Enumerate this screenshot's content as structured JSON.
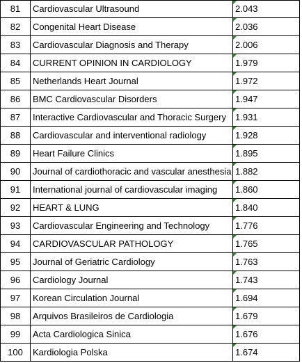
{
  "table": {
    "rows": [
      {
        "rank": "81",
        "journal": "Cardiovascular Ultrasound",
        "value": "2.043"
      },
      {
        "rank": "82",
        "journal": "Congenital Heart Disease",
        "value": "2.036"
      },
      {
        "rank": "83",
        "journal": "Cardiovascular Diagnosis and Therapy",
        "value": "2.006"
      },
      {
        "rank": "84",
        "journal": "CURRENT OPINION IN CARDIOLOGY",
        "value": "1.979"
      },
      {
        "rank": "85",
        "journal": "Netherlands Heart Journal",
        "value": "1.972"
      },
      {
        "rank": "86",
        "journal": "BMC Cardiovascular Disorders",
        "value": "1.947"
      },
      {
        "rank": "87",
        "journal": "Interactive Cardiovascular and Thoracic Surgery",
        "value": "1.931"
      },
      {
        "rank": "88",
        "journal": "Cardiovascular and interventional radiology",
        "value": "1.928"
      },
      {
        "rank": "89",
        "journal": "Heart Failure Clinics",
        "value": "1.895"
      },
      {
        "rank": "90",
        "journal": "Journal of cardiothoracic and vascular anesthesia",
        "value": "1.882"
      },
      {
        "rank": "91",
        "journal": "International journal of cardiovascular imaging",
        "value": "1.860"
      },
      {
        "rank": "92",
        "journal": "HEART & LUNG",
        "value": "1.840"
      },
      {
        "rank": "93",
        "journal": "Cardiovascular Engineering and Technology",
        "value": "1.776"
      },
      {
        "rank": "94",
        "journal": "CARDIOVASCULAR PATHOLOGY",
        "value": "1.765"
      },
      {
        "rank": "95",
        "journal": "Journal of Geriatric Cardiology",
        "value": "1.763"
      },
      {
        "rank": "96",
        "journal": "Cardiology Journal",
        "value": "1.743"
      },
      {
        "rank": "97",
        "journal": "Korean Circulation Journal",
        "value": "1.694"
      },
      {
        "rank": "98",
        "journal": "Arquivos Brasileiros de Cardiologia",
        "value": "1.679"
      },
      {
        "rank": "99",
        "journal": "Acta Cardiologica Sinica",
        "value": "1.676"
      },
      {
        "rank": "100",
        "journal": "Kardiologia Polska",
        "value": "1.674"
      }
    ]
  },
  "colors": {
    "grid_line": "#000000",
    "comment_marker": "#1a8a1a",
    "background": "#ffffff"
  }
}
